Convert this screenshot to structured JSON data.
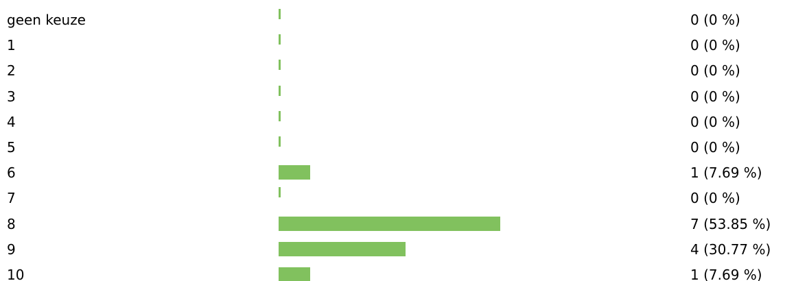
{
  "chart_data": {
    "type": "bar",
    "orientation": "horizontal",
    "title": "",
    "xlabel": "",
    "ylabel": "",
    "categories": [
      "geen keuze",
      "1",
      "2",
      "3",
      "4",
      "5",
      "6",
      "7",
      "8",
      "9",
      "10"
    ],
    "values": [
      0,
      0,
      0,
      0,
      0,
      0,
      1,
      0,
      7,
      4,
      1
    ],
    "value_labels": [
      "0 (0 %)",
      "0 (0 %)",
      "0 (0 %)",
      "0 (0 %)",
      "0 (0 %)",
      "0 (0 %)",
      "1 (7.69 %)",
      "0 (0 %)",
      "7 (53.85 %)",
      "4 (30.77 %)",
      "1 (7.69 %)"
    ],
    "percentages": [
      0,
      0,
      0,
      0,
      0,
      0,
      7.69,
      0,
      53.85,
      30.77,
      7.69
    ],
    "xlim": [
      0,
      13
    ],
    "bar_color": "#81c15e",
    "grid": false,
    "legend": "none"
  }
}
